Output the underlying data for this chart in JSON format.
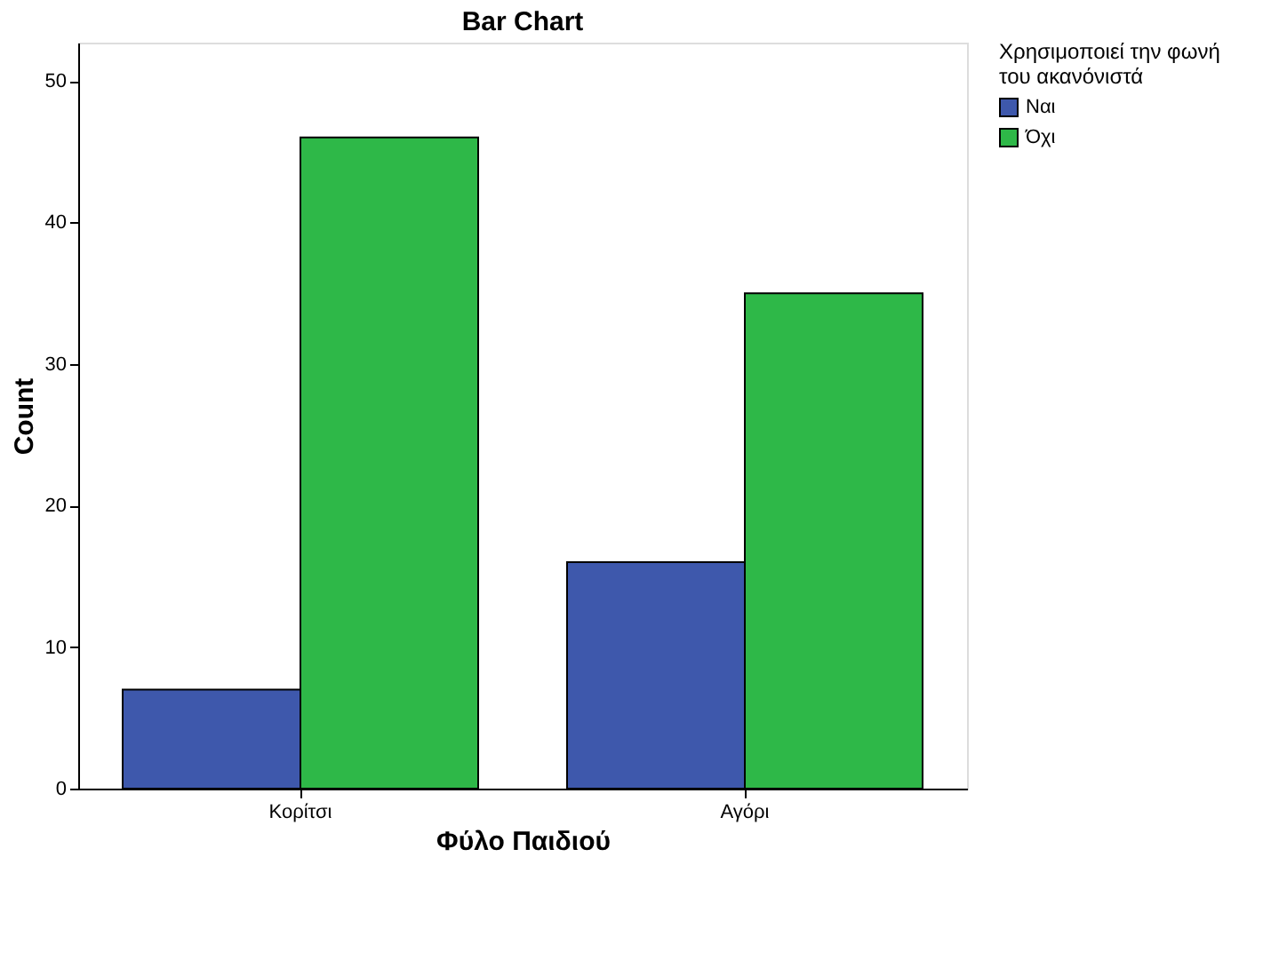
{
  "chart_data": {
    "type": "bar",
    "title": "Bar Chart",
    "xlabel": "Φύλο Παιδιού",
    "ylabel": "Count",
    "legend_title": "Χρησιμοποιεί την φωνή του ακανόνιστά",
    "categories": [
      "Κορίτσι",
      "Αγόρι"
    ],
    "series": [
      {
        "name": "Ναι",
        "color": "#3e58ac",
        "values": [
          7,
          16
        ]
      },
      {
        "name": "Όχι",
        "color": "#2eb848",
        "values": [
          46,
          35
        ]
      }
    ],
    "ylim": [
      0,
      52.7
    ],
    "yticks": [
      0,
      10,
      20,
      30,
      40,
      50
    ],
    "grid": false,
    "legend": "top right"
  }
}
